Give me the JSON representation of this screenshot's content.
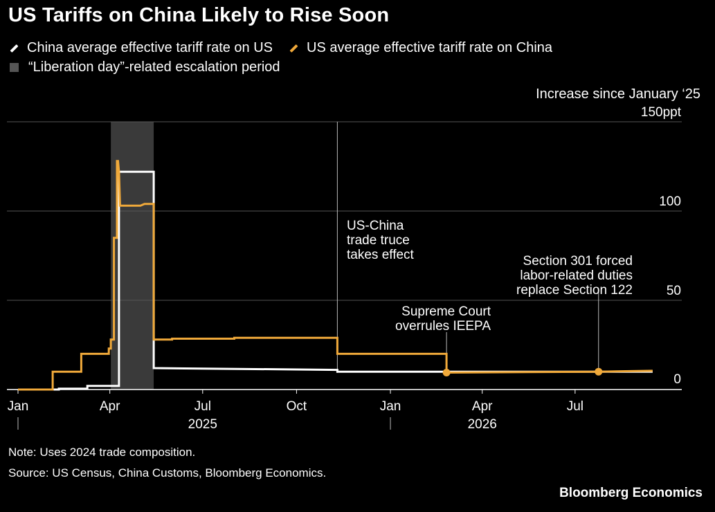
{
  "title": "US Tariffs on China Likely to Rise Soon",
  "legend": {
    "series1": "China average effective tariff rate on US",
    "series2": "US average effective tariff rate on China",
    "period": "“Liberation day”-related escalation period"
  },
  "colors": {
    "series1": "#ffffff",
    "series2": "#f0a93a",
    "period": "#3a3a3a",
    "grid": "#555555"
  },
  "y_axis_note": "Increase since January ‘25",
  "notes": {
    "note": "Note: Uses 2024 trade composition.",
    "source": "Source: US Census, China Customs, Bloomberg Economics."
  },
  "brand": "Bloomberg Economics",
  "chart_data": {
    "type": "line",
    "x_unit": "date",
    "xlim": [
      "2025-01-01",
      "2026-09-30"
    ],
    "ylim": [
      0,
      150
    ],
    "yticks": [
      {
        "value": 0,
        "label": "0"
      },
      {
        "value": 50,
        "label": "50"
      },
      {
        "value": 100,
        "label": "100"
      },
      {
        "value": 150,
        "label": "150ppt"
      }
    ],
    "xticks": [
      {
        "date": "2025-01-01",
        "label": "Jan"
      },
      {
        "date": "2025-04-01",
        "label": "Apr"
      },
      {
        "date": "2025-07-01",
        "label": "Jul"
      },
      {
        "date": "2025-10-01",
        "label": "Oct"
      },
      {
        "date": "2026-01-01",
        "label": "Jan"
      },
      {
        "date": "2026-04-01",
        "label": "Apr"
      },
      {
        "date": "2026-07-01",
        "label": "Jul"
      }
    ],
    "year_labels": [
      {
        "date": "2025-07-01",
        "label": "2025"
      },
      {
        "date": "2026-04-01",
        "label": "2026"
      }
    ],
    "year_dividers": [
      "2025-01-01",
      "2026-01-01"
    ],
    "shaded_period": {
      "start": "2025-04-02",
      "end": "2025-05-14"
    },
    "grid": true,
    "legend_position": "top-left",
    "series": [
      {
        "name": "China average effective tariff rate on US",
        "points": [
          [
            "2025-01-01",
            0
          ],
          [
            "2025-02-10",
            0
          ],
          [
            "2025-02-10",
            0.5
          ],
          [
            "2025-03-10",
            0.5
          ],
          [
            "2025-03-10",
            2
          ],
          [
            "2025-04-04",
            2
          ],
          [
            "2025-04-10",
            2
          ],
          [
            "2025-04-10",
            122
          ],
          [
            "2025-05-14",
            122
          ],
          [
            "2025-05-14",
            12
          ],
          [
            "2025-11-10",
            11
          ],
          [
            "2025-11-10",
            10
          ],
          [
            "2026-09-15",
            10
          ]
        ]
      },
      {
        "name": "US average effective tariff rate on China",
        "points": [
          [
            "2025-01-01",
            0
          ],
          [
            "2025-02-04",
            0
          ],
          [
            "2025-02-04",
            10
          ],
          [
            "2025-03-04",
            10
          ],
          [
            "2025-03-04",
            20
          ],
          [
            "2025-03-31",
            20
          ],
          [
            "2025-03-31",
            23
          ],
          [
            "2025-04-02",
            23
          ],
          [
            "2025-04-02",
            28
          ],
          [
            "2025-04-05",
            28
          ],
          [
            "2025-04-05",
            85
          ],
          [
            "2025-04-08",
            85
          ],
          [
            "2025-04-08",
            128
          ],
          [
            "2025-04-09",
            128
          ],
          [
            "2025-04-10",
            122
          ],
          [
            "2025-04-11",
            103
          ],
          [
            "2025-05-01",
            103
          ],
          [
            "2025-05-05",
            104
          ],
          [
            "2025-05-14",
            104
          ],
          [
            "2025-05-14",
            28
          ],
          [
            "2025-06-01",
            28
          ],
          [
            "2025-06-01",
            28.5
          ],
          [
            "2025-08-01",
            28.5
          ],
          [
            "2025-08-01",
            29
          ],
          [
            "2025-11-10",
            29
          ],
          [
            "2025-11-10",
            20
          ],
          [
            "2026-02-25",
            20
          ],
          [
            "2026-02-25",
            9.5
          ],
          [
            "2026-07-24",
            10
          ],
          [
            "2026-09-15",
            10.5
          ]
        ]
      }
    ],
    "markers": [
      {
        "date": "2026-02-25",
        "value": 9.5,
        "series": "US average effective tariff rate on China"
      },
      {
        "date": "2026-07-24",
        "value": 10,
        "series": "US average effective tariff rate on China"
      }
    ],
    "annotations": [
      {
        "date": "2025-11-10",
        "lines": [
          "US-China",
          "trade truce",
          "takes effect"
        ],
        "align": "left"
      },
      {
        "date": "2026-02-25",
        "lines": [
          "Supreme Court",
          "overrules IEEPA"
        ],
        "align": "right"
      },
      {
        "date": "2026-07-24",
        "lines": [
          "Section 301 forced",
          "labor-related duties",
          "replace Section 122"
        ],
        "align": "right"
      }
    ]
  }
}
